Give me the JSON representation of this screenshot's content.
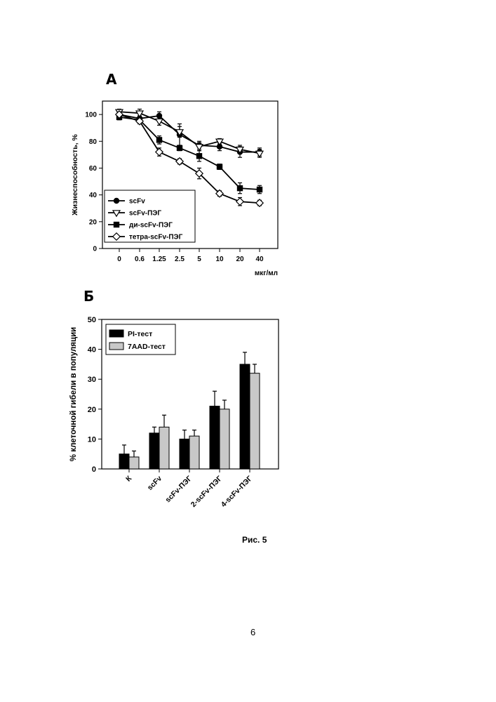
{
  "panel_a": {
    "letter": "А"
  },
  "panel_b": {
    "letter": "Б"
  },
  "caption": "Рис. 5",
  "page_number": "6",
  "chart_data": [
    {
      "type": "line",
      "categories": [
        "0",
        "0.6",
        "1.25",
        "2.5",
        "5",
        "10",
        "20",
        "40"
      ],
      "xlabel": "мкг/мл",
      "ylabel": "Жизнеспособность, %",
      "ylim": [
        0,
        110
      ],
      "yticks": [
        0,
        20,
        40,
        60,
        80,
        100
      ],
      "legend_position": "bottom-left",
      "series": [
        {
          "name": "scFv",
          "marker": "filled-circle",
          "values": [
            100,
            97,
            99,
            85,
            77,
            76,
            72,
            72
          ],
          "errors": [
            2,
            2,
            3,
            8,
            3,
            3,
            4,
            3
          ]
        },
        {
          "name": "scFv-ПЭГ",
          "marker": "open-triangle",
          "values": [
            102,
            101,
            95,
            87,
            76,
            80,
            74,
            71
          ],
          "errors": [
            2,
            3,
            3,
            4,
            3,
            2,
            3,
            3
          ]
        },
        {
          "name": "ди-scFv-ПЭГ",
          "marker": "filled-square",
          "values": [
            98,
            96,
            81,
            75,
            69,
            61,
            45,
            44
          ],
          "errors": [
            2,
            2,
            3,
            2,
            4,
            2,
            4,
            3
          ]
        },
        {
          "name": "тетра-scFv-ПЭГ",
          "marker": "open-diamond",
          "values": [
            100,
            95,
            72,
            65,
            56,
            41,
            35,
            34
          ],
          "errors": [
            2,
            2,
            3,
            2,
            4,
            2,
            3,
            2
          ]
        }
      ]
    },
    {
      "type": "bar",
      "categories": [
        "К",
        "scFv",
        "scFv-ПЭГ",
        "2-scFv-ПЭГ",
        "4-scFv-ПЭГ"
      ],
      "ylabel": "% клеточной гибели в популяции",
      "ylim": [
        0,
        50
      ],
      "yticks": [
        0,
        10,
        20,
        30,
        40,
        50
      ],
      "legend_position": "top-left",
      "series": [
        {
          "name": "PI-тест",
          "color": "#000000",
          "values": [
            5,
            12,
            10,
            21,
            35
          ],
          "errors": [
            3,
            2,
            3,
            5,
            4
          ]
        },
        {
          "name": "7AAD-тест",
          "color": "#c8c8c8",
          "values": [
            4,
            14,
            11,
            20,
            32
          ],
          "errors": [
            2,
            4,
            2,
            3,
            3
          ]
        }
      ]
    }
  ]
}
